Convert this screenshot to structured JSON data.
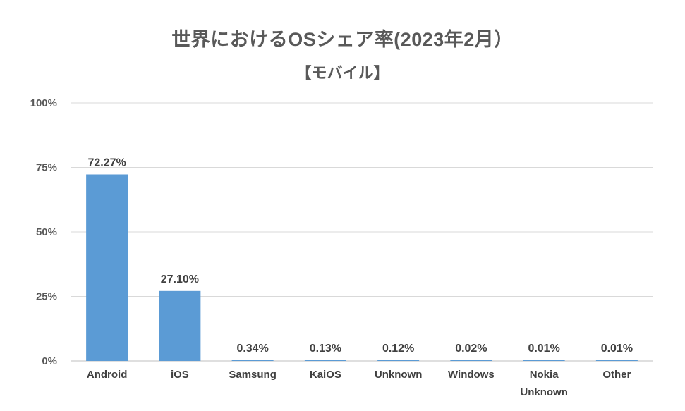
{
  "chart_data": {
    "type": "bar",
    "title": "世界におけるOSシェア率(2023年2月）",
    "subtitle": "【モバイル】",
    "categories": [
      "Android",
      "iOS",
      "Samsung",
      "KaiOS",
      "Unknown",
      "Windows",
      "Nokia Unknown",
      "Other"
    ],
    "category_lines": [
      [
        "Android"
      ],
      [
        "iOS"
      ],
      [
        "Samsung"
      ],
      [
        "KaiOS"
      ],
      [
        "Unknown"
      ],
      [
        "Windows"
      ],
      [
        "Nokia",
        "Unknown"
      ],
      [
        "Other"
      ]
    ],
    "values": [
      72.27,
      27.1,
      0.34,
      0.13,
      0.12,
      0.02,
      0.01,
      0.01
    ],
    "data_labels": [
      "72.27%",
      "27.10%",
      "0.34%",
      "0.13%",
      "0.12%",
      "0.02%",
      "0.01%",
      "0.01%"
    ],
    "yticks": [
      "0%",
      "25%",
      "50%",
      "75%",
      "100%"
    ],
    "ylim": [
      0,
      100
    ],
    "grid": true,
    "bar_color": "#5B9BD5",
    "grid_color": "#D9D9D9"
  }
}
